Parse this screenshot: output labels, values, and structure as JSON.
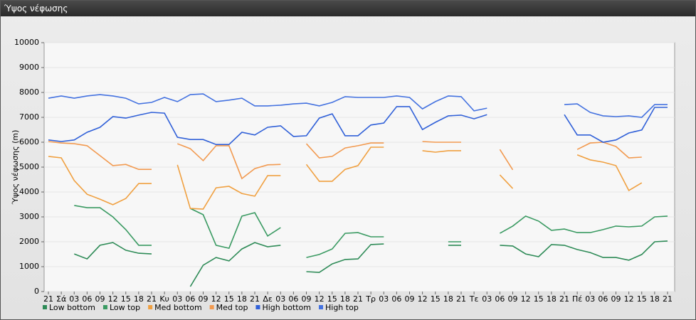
{
  "header": {
    "title": "Ύψος νέφωσης"
  },
  "chart_data": {
    "type": "line",
    "y_label": "Ύψος νέφωσης (m)",
    "categories": [
      "21",
      "Σά",
      "03",
      "06",
      "09",
      "12",
      "15",
      "18",
      "21",
      "Κυ",
      "03",
      "06",
      "09",
      "12",
      "15",
      "18",
      "21",
      "Δε",
      "03",
      "06",
      "09",
      "12",
      "15",
      "18",
      "21",
      "Τρ",
      "03",
      "06",
      "09",
      "12",
      "15",
      "18",
      "21",
      "Τε",
      "03",
      "06",
      "09",
      "12",
      "15",
      "18",
      "21",
      "Πέ",
      "03",
      "06",
      "09",
      "12",
      "15",
      "18",
      "21"
    ],
    "ylim": [
      0,
      10000
    ],
    "yticks": [
      0,
      1000,
      2000,
      3000,
      4000,
      5000,
      6000,
      7000,
      8000,
      9000,
      10000
    ],
    "grid": true,
    "series": [
      {
        "name": "Low bottom",
        "color": "#2e8b57",
        "values": [
          null,
          null,
          1510,
          1310,
          1860,
          1970,
          1660,
          1540,
          1510,
          null,
          null,
          200,
          1060,
          1370,
          1230,
          1710,
          1970,
          1800,
          1860,
          null,
          800,
          770,
          1110,
          1290,
          1310,
          1890,
          1910,
          null,
          null,
          null,
          null,
          1860,
          1860,
          null,
          null,
          1860,
          1830,
          1510,
          1400,
          1890,
          1860,
          1690,
          1570,
          1370,
          1370,
          1260,
          1490,
          2000,
          2030
        ]
      },
      {
        "name": "Low top",
        "color": "#3a9a62",
        "values": [
          null,
          null,
          3460,
          3370,
          3370,
          3000,
          2490,
          1860,
          1860,
          null,
          null,
          3340,
          3090,
          1860,
          1740,
          3030,
          3170,
          2230,
          2570,
          null,
          1370,
          1490,
          1710,
          2340,
          2370,
          2200,
          2200,
          null,
          null,
          null,
          null,
          2000,
          2000,
          null,
          null,
          2340,
          2630,
          3030,
          2830,
          2460,
          2510,
          2370,
          2370,
          2490,
          2630,
          2600,
          2630,
          3000,
          3030
        ]
      },
      {
        "name": "Med bottom",
        "color": "#f0a040",
        "values": [
          5430,
          5370,
          4460,
          3910,
          3710,
          3490,
          3740,
          4340,
          4340,
          null,
          5090,
          3340,
          3310,
          4170,
          4230,
          3940,
          3830,
          4660,
          4660,
          null,
          5110,
          4430,
          4430,
          4910,
          5060,
          5800,
          5800,
          null,
          null,
          5660,
          5600,
          5660,
          5660,
          null,
          null,
          4690,
          4140,
          null,
          null,
          null,
          null,
          5490,
          5290,
          5200,
          5060,
          4060,
          4370,
          null,
          null
        ]
      },
      {
        "name": "Med top",
        "color": "#f29a50",
        "values": [
          6030,
          5970,
          5940,
          5860,
          5460,
          5060,
          5110,
          4910,
          4910,
          null,
          5940,
          5740,
          5260,
          5860,
          5860,
          4540,
          4940,
          5090,
          5110,
          null,
          5940,
          5370,
          5430,
          5770,
          5860,
          5970,
          5970,
          null,
          null,
          6030,
          6000,
          6000,
          6000,
          null,
          null,
          5710,
          4890,
          null,
          null,
          null,
          null,
          5710,
          5970,
          6000,
          5830,
          5370,
          5400,
          null,
          null
        ]
      },
      {
        "name": "High bottom",
        "color": "#3060d8",
        "values": [
          6090,
          6030,
          6090,
          6400,
          6600,
          7030,
          6970,
          7090,
          7200,
          7170,
          6200,
          6110,
          6110,
          5910,
          5910,
          6400,
          6290,
          6600,
          6660,
          6230,
          6260,
          6970,
          7140,
          6260,
          6260,
          6690,
          6770,
          7430,
          7430,
          6510,
          6800,
          7060,
          7090,
          6940,
          7110,
          null,
          null,
          null,
          null,
          null,
          7110,
          6290,
          6290,
          6000,
          6090,
          6370,
          6490,
          7400,
          7400
        ]
      },
      {
        "name": "High top",
        "color": "#4472e0",
        "values": [
          7770,
          7860,
          7770,
          7860,
          7910,
          7860,
          7770,
          7540,
          7600,
          7800,
          7630,
          7910,
          7940,
          7630,
          7690,
          7770,
          7460,
          7460,
          7490,
          7540,
          7570,
          7460,
          7600,
          7830,
          7800,
          7800,
          7800,
          7860,
          7800,
          7340,
          7630,
          7860,
          7830,
          7260,
          7370,
          null,
          null,
          null,
          null,
          null,
          7510,
          7540,
          7200,
          7060,
          7030,
          7060,
          7000,
          7510,
          7510
        ]
      }
    ]
  }
}
